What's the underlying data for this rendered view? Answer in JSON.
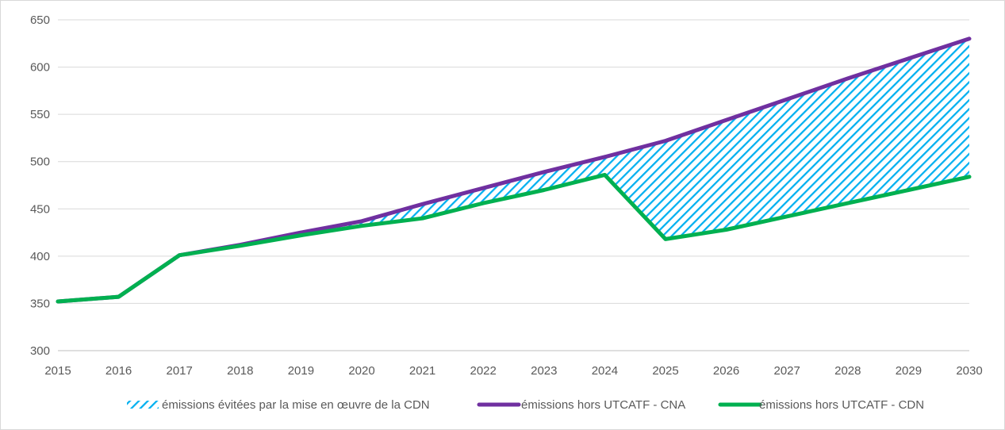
{
  "chart_data": {
    "type": "area",
    "x": [
      2015,
      2016,
      2017,
      2018,
      2019,
      2020,
      2021,
      2022,
      2023,
      2024,
      2025,
      2026,
      2027,
      2028,
      2029,
      2030
    ],
    "x_tick_labels": [
      "2015",
      "2016",
      "2017",
      "2018",
      "2019",
      "2020",
      "2021",
      "2022",
      "2023",
      "2024",
      "2025",
      "2026",
      "2027",
      "2028",
      "2029",
      "2030"
    ],
    "ylim": [
      300,
      650
    ],
    "y_ticks": [
      300,
      350,
      400,
      450,
      500,
      550,
      600,
      650
    ],
    "y_tick_labels": [
      "300",
      "350",
      "400",
      "450",
      "500",
      "550",
      "600",
      "650"
    ],
    "grid": true,
    "legend_position": "bottom",
    "series": [
      {
        "name": "émissions hors UTCATF - CNA",
        "type": "line",
        "color": "#7030a0",
        "values": [
          352,
          357,
          401,
          412,
          425,
          437,
          455,
          472,
          489,
          505,
          522,
          544,
          566,
          588,
          609,
          630
        ]
      },
      {
        "name": "émissions hors UTCATF - CDN",
        "type": "line",
        "color": "#00b050",
        "values": [
          352,
          357,
          401,
          411,
          422,
          432,
          440,
          456,
          470,
          486,
          418,
          428,
          442,
          456,
          470,
          484
        ]
      }
    ],
    "filled_area": {
      "name": "émissions évitées par la mise en œuvre de la CDN",
      "color": "#00b0f0",
      "pattern": "diagonal-hatch",
      "between": [
        "émissions hors UTCATF - CDN",
        "émissions hors UTCATF - CNA"
      ]
    },
    "legend": [
      {
        "label": "émissions évitées par la mise en œuvre de la CDN",
        "kind": "hatch",
        "color": "#00b0f0"
      },
      {
        "label": "émissions hors UTCATF - CNA",
        "kind": "line",
        "color": "#7030a0"
      },
      {
        "label": "émissions hors UTCATF - CDN",
        "kind": "line",
        "color": "#00b050"
      }
    ],
    "colors": {
      "grid": "#d9d9d9",
      "axis": "#bfbfbf",
      "text": "#595959"
    }
  }
}
